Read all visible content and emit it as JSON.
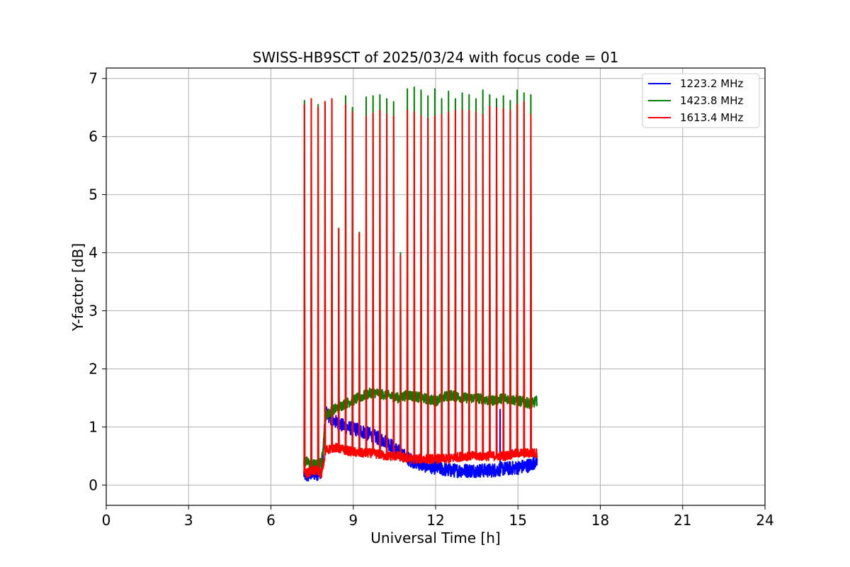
{
  "chart_data": {
    "type": "line",
    "title": "SWISS-HB9SCT of 2025/03/24 with focus code = 01",
    "xlabel": "Universal Time [h]",
    "ylabel": "Y-factor [dB]",
    "xlim": [
      0,
      24
    ],
    "ylim": [
      -0.35,
      7.18
    ],
    "xticks": [
      0,
      3,
      6,
      9,
      12,
      15,
      18,
      21,
      24
    ],
    "yticks": [
      0,
      1,
      2,
      3,
      4,
      5,
      6,
      7
    ],
    "grid": true,
    "legend_position": "top-right",
    "series": [
      {
        "name": "1223.2 MHz",
        "color": "#0000ff",
        "x": [
          7.2,
          7.3,
          7.5,
          7.7,
          7.85,
          8.0,
          8.3,
          8.7,
          9.2,
          9.7,
          10.2,
          10.6,
          11.0,
          11.5,
          12.0,
          12.5,
          13.0,
          13.5,
          14.0,
          14.5,
          15.0,
          15.5,
          15.7
        ],
        "y": [
          0.2,
          0.15,
          0.2,
          0.2,
          0.25,
          1.25,
          1.1,
          1.0,
          0.95,
          0.85,
          0.75,
          0.6,
          0.45,
          0.35,
          0.3,
          0.25,
          0.25,
          0.25,
          0.25,
          0.28,
          0.3,
          0.35,
          0.45
        ]
      },
      {
        "name": "1423.8 MHz",
        "color": "#008000",
        "x": [
          7.2,
          7.3,
          7.5,
          7.7,
          7.85,
          8.0,
          8.3,
          8.7,
          9.2,
          9.7,
          10.2,
          10.6,
          11.0,
          11.5,
          12.0,
          12.5,
          13.0,
          13.5,
          14.0,
          14.5,
          15.0,
          15.5,
          15.7
        ],
        "y": [
          0.35,
          0.4,
          0.35,
          0.35,
          0.4,
          1.2,
          1.3,
          1.4,
          1.5,
          1.6,
          1.55,
          1.5,
          1.55,
          1.5,
          1.45,
          1.55,
          1.5,
          1.5,
          1.45,
          1.5,
          1.45,
          1.4,
          1.45
        ]
      },
      {
        "name": "1613.4 MHz",
        "color": "#ff0000",
        "x": [
          7.2,
          7.3,
          7.5,
          7.7,
          7.85,
          8.0,
          8.3,
          8.7,
          9.2,
          9.7,
          10.2,
          10.6,
          11.0,
          11.5,
          12.0,
          12.5,
          13.0,
          13.5,
          14.0,
          14.5,
          15.0,
          15.5,
          15.7
        ],
        "y": [
          0.25,
          0.2,
          0.25,
          0.25,
          0.2,
          0.6,
          0.65,
          0.6,
          0.55,
          0.55,
          0.5,
          0.5,
          0.45,
          0.45,
          0.45,
          0.45,
          0.5,
          0.5,
          0.5,
          0.5,
          0.55,
          0.55,
          0.55
        ]
      }
    ],
    "spikes": [
      {
        "x": 7.22,
        "green": 6.62,
        "red": 6.55
      },
      {
        "x": 7.47,
        "green": 6.65,
        "red": 6.65
      },
      {
        "x": 7.72,
        "green": 6.55,
        "red": 6.5
      },
      {
        "x": 7.97,
        "green": 6.6,
        "red": 6.6
      },
      {
        "x": 8.22,
        "green": 6.65,
        "red": 6.65
      },
      {
        "x": 8.47,
        "green": 4.4,
        "red": 4.42
      },
      {
        "x": 8.72,
        "green": 6.7,
        "red": 6.55
      },
      {
        "x": 8.97,
        "green": 6.5,
        "red": 6.42
      },
      {
        "x": 9.22,
        "green": 4.35,
        "red": 4.33
      },
      {
        "x": 9.47,
        "green": 6.68,
        "red": 6.35
      },
      {
        "x": 9.72,
        "green": 6.7,
        "red": 6.4
      },
      {
        "x": 9.97,
        "green": 6.72,
        "red": 6.45
      },
      {
        "x": 10.22,
        "green": 6.65,
        "red": 6.38
      },
      {
        "x": 10.47,
        "green": 6.6,
        "red": 6.35
      },
      {
        "x": 10.72,
        "green": 4.0,
        "red": 3.95
      },
      {
        "x": 10.97,
        "green": 6.82,
        "red": 6.45
      },
      {
        "x": 11.22,
        "green": 6.85,
        "red": 6.42
      },
      {
        "x": 11.47,
        "green": 6.8,
        "red": 6.35
      },
      {
        "x": 11.72,
        "green": 6.7,
        "red": 6.32
      },
      {
        "x": 11.97,
        "green": 6.82,
        "red": 6.35
      },
      {
        "x": 12.22,
        "green": 6.65,
        "red": 6.38
      },
      {
        "x": 12.47,
        "green": 6.78,
        "red": 6.42
      },
      {
        "x": 12.72,
        "green": 6.65,
        "red": 6.45
      },
      {
        "x": 12.97,
        "green": 6.75,
        "red": 6.45
      },
      {
        "x": 13.22,
        "green": 6.72,
        "red": 6.45
      },
      {
        "x": 13.47,
        "green": 6.65,
        "red": 6.42
      },
      {
        "x": 13.72,
        "green": 6.8,
        "red": 6.38
      },
      {
        "x": 13.97,
        "green": 6.72,
        "red": 6.52
      },
      {
        "x": 14.22,
        "green": 6.65,
        "red": 6.5
      },
      {
        "x": 14.47,
        "green": 6.7,
        "red": 6.48
      },
      {
        "x": 14.72,
        "green": 6.62,
        "red": 6.45
      },
      {
        "x": 14.97,
        "green": 6.8,
        "red": 6.55
      },
      {
        "x": 15.22,
        "green": 6.75,
        "red": 6.6
      },
      {
        "x": 15.47,
        "green": 6.72,
        "red": 6.38
      }
    ],
    "blue_spike": {
      "x": 14.35,
      "y": 1.3
    }
  }
}
